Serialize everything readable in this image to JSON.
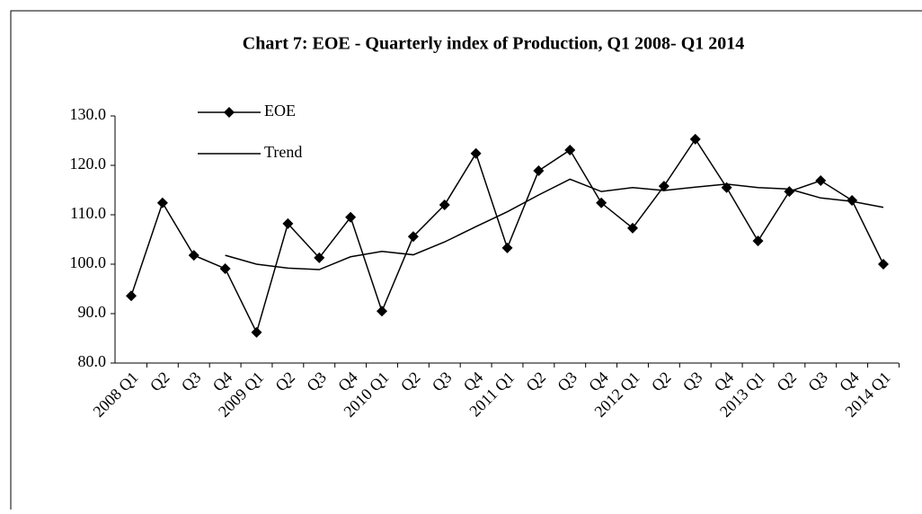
{
  "chart_data": {
    "type": "line",
    "title": "Chart 7: EOE - Quarterly index of Production, Q1 2008- Q1 2014",
    "categories": [
      "2008 Q1",
      "Q2",
      "Q3",
      "Q4",
      "2009 Q1",
      "Q2",
      "Q3",
      "Q4",
      "2010 Q1",
      "Q2",
      "Q3",
      "Q4",
      "2011 Q1",
      "Q2",
      "Q3",
      "Q4",
      "2012 Q1",
      "Q2",
      "Q3",
      "Q4",
      "2013 Q1",
      "Q2",
      "Q3",
      "Q4",
      "2014 Q1"
    ],
    "series": [
      {
        "name": "EOE",
        "color": "#000000",
        "marker": "diamond",
        "values": [
          93.6,
          112.4,
          101.8,
          99.1,
          86.2,
          108.2,
          101.3,
          109.5,
          90.5,
          105.6,
          112.0,
          122.4,
          103.3,
          118.9,
          123.1,
          112.4,
          107.3,
          115.8,
          125.3,
          115.5,
          104.7,
          114.7,
          116.9,
          112.9,
          100.0
        ]
      },
      {
        "name": "Trend",
        "color": "#000000",
        "values": [
          null,
          null,
          null,
          101.8,
          100.0,
          99.2,
          98.9,
          101.5,
          102.6,
          101.9,
          104.5,
          107.6,
          110.6,
          114.0,
          117.2,
          114.7,
          115.5,
          114.9,
          115.6,
          116.2,
          115.5,
          115.2,
          113.4,
          112.7,
          111.5
        ]
      }
    ],
    "ylim": [
      80,
      130
    ],
    "yticks": [
      {
        "value": 80,
        "label": "80.0"
      },
      {
        "value": 90,
        "label": "90.0"
      },
      {
        "value": 100,
        "label": "100.0"
      },
      {
        "value": 110,
        "label": "110.0"
      },
      {
        "value": 120,
        "label": "120.0"
      },
      {
        "value": 130,
        "label": "130.0"
      }
    ],
    "legend": "top-left"
  }
}
